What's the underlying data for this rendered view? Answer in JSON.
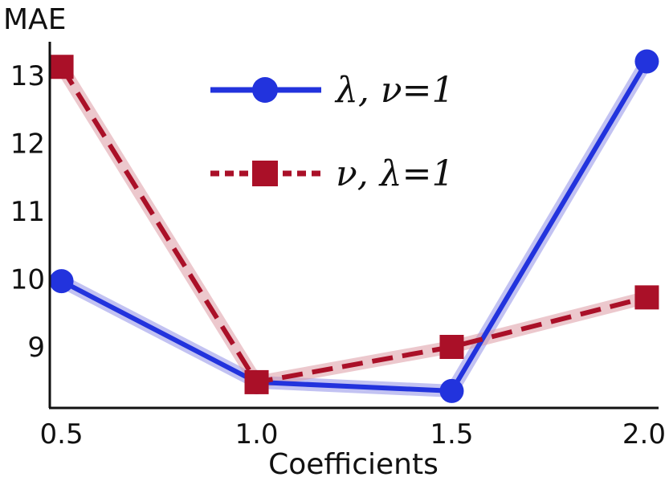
{
  "chart_data": {
    "type": "line",
    "title": "",
    "xlabel": "Coefficients",
    "ylabel": "MAE",
    "x": [
      0.5,
      1.0,
      1.5,
      2.0
    ],
    "x_tick_labels": [
      "0.5",
      "1.0",
      "1.5",
      "2.0"
    ],
    "y_ticks": [
      9,
      10,
      11,
      12,
      13
    ],
    "y_tick_labels": [
      "9",
      "10",
      "11",
      "12",
      "13"
    ],
    "xlim": [
      0.47,
      2.03
    ],
    "ylim": [
      8.1,
      13.5
    ],
    "grid": false,
    "legend_position": "top-center",
    "series": [
      {
        "name": "λ, ν=1",
        "values": [
          9.97,
          8.48,
          8.35,
          13.21
        ],
        "color": "#2233dd",
        "band_color": "#8f8fe8",
        "line_style": "solid",
        "marker": "circle"
      },
      {
        "name": "ν, λ=1",
        "values": [
          13.13,
          8.48,
          9.0,
          9.73
        ],
        "color": "#aa1028",
        "band_color": "#dc9aa4",
        "line_style": "dashed",
        "marker": "square"
      }
    ]
  }
}
